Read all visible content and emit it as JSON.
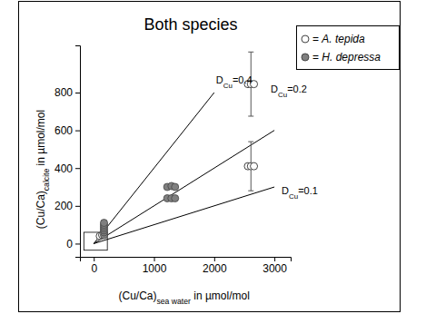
{
  "chart_data": {
    "type": "scatter",
    "title": "Both species",
    "x_label": [
      "(Cu/Ca)",
      "sea water",
      " in µmol/mol"
    ],
    "y_label": [
      "(Cu/Ca)",
      "calcite",
      " in µmol/mol"
    ],
    "xlim": [
      -230,
      3270
    ],
    "ylim": [
      -70,
      1050
    ],
    "xticks": [
      0,
      1000,
      2000,
      3000
    ],
    "yticks": [
      0,
      200,
      400,
      600,
      800
    ],
    "legend": "upper right",
    "legend_separator": "=",
    "series": [
      {
        "name": "A. tepida",
        "color": "#ffffff",
        "marker": "open-circle",
        "x": [
          100,
          140,
          2560,
          2610,
          2660,
          2560,
          2610,
          2660
        ],
        "values": [
          40,
          45,
          845,
          845,
          845,
          410,
          410,
          410
        ],
        "errors": [
          null,
          null,
          null,
          170,
          null,
          null,
          130,
          null
        ]
      },
      {
        "name": "H. depressa",
        "color": "#808080",
        "marker": "circle",
        "x": [
          170,
          170,
          170,
          170,
          170,
          170,
          170,
          1220,
          1290,
          1350,
          1220,
          1290,
          1350
        ],
        "values": [
          45,
          60,
          70,
          80,
          90,
          100,
          110,
          300,
          305,
          300,
          240,
          240,
          240
        ],
        "errors": [
          null,
          null,
          null,
          null,
          null,
          null,
          null,
          null,
          null,
          null,
          null,
          null,
          null
        ]
      }
    ],
    "reference_lines": [
      {
        "label": [
          "D",
          "Cu",
          "=0.4"
        ],
        "x": [
          0,
          2000
        ],
        "values": [
          0,
          800
        ],
        "color": "#000000"
      },
      {
        "label": [
          "D",
          "Cu",
          "=0.2"
        ],
        "x": [
          0,
          3000
        ],
        "values": [
          0,
          600
        ],
        "color": "#000000"
      },
      {
        "label": [
          "D",
          "Cu",
          "=0.1"
        ],
        "x": [
          0,
          3000
        ],
        "values": [
          0,
          300
        ],
        "color": "#000000"
      }
    ],
    "zoom_box": {
      "x": [
        -165,
        225
      ],
      "y": [
        -35,
        60
      ]
    }
  }
}
